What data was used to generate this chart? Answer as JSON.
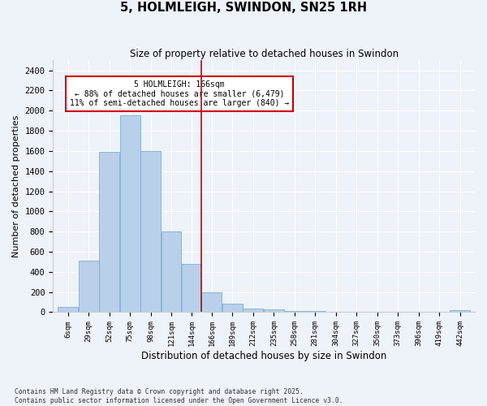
{
  "title": "5, HOLMLEIGH, SWINDON, SN25 1RH",
  "subtitle": "Size of property relative to detached houses in Swindon",
  "xlabel": "Distribution of detached houses by size in Swindon",
  "ylabel": "Number of detached properties",
  "footer_line1": "Contains HM Land Registry data © Crown copyright and database right 2025.",
  "footer_line2": "Contains public sector information licensed under the Open Government Licence v3.0.",
  "annotation_title": "5 HOLMLEIGH: 166sqm",
  "annotation_line1": "← 88% of detached houses are smaller (6,479)",
  "annotation_line2": "11% of semi-detached houses are larger (840) →",
  "property_line_x": 166,
  "bar_edges": [
    6,
    29,
    52,
    75,
    98,
    121,
    144,
    166,
    189,
    212,
    235,
    258,
    281,
    304,
    327,
    350,
    373,
    396,
    419,
    442,
    465
  ],
  "bar_heights": [
    55,
    510,
    1590,
    1950,
    1600,
    800,
    480,
    200,
    85,
    40,
    25,
    15,
    8,
    5,
    3,
    2,
    0,
    0,
    0,
    20
  ],
  "bar_color": "#b8d0ea",
  "bar_edge_color": "#7aafd4",
  "vline_color": "#cc0000",
  "annotation_box_color": "#cc0000",
  "background_color": "#eef2f9",
  "ylim": [
    0,
    2500
  ],
  "yticks": [
    0,
    200,
    400,
    600,
    800,
    1000,
    1200,
    1400,
    1600,
    1800,
    2000,
    2200,
    2400
  ]
}
